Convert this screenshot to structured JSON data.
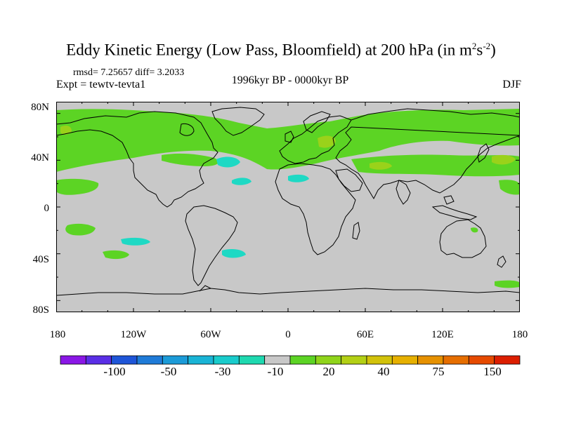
{
  "title": {
    "main": "Eddy Kinetic Energy (Low Pass, Bloomfield) at 200 hPa (in m",
    "sup1": "2",
    "mid": "s",
    "sup2": "-2",
    "end": ")"
  },
  "stats": "rmsd= 7.25657 diff= 3.2033",
  "expt": "Expt = tewtv-tevta1",
  "period": "1996kyr BP - 0000kyr BP",
  "season": "DJF",
  "y_axis_labels": [
    "80N",
    "40N",
    "0",
    "40S",
    "80S"
  ],
  "x_axis_labels": [
    "180",
    "120W",
    "60W",
    "0",
    "60E",
    "120E",
    "180"
  ],
  "colorbar": {
    "labels": [
      "-100",
      "-50",
      "-30",
      "-10",
      "20",
      "40",
      "75",
      "150"
    ],
    "colors": [
      "#8a17e6",
      "#5a2ee6",
      "#1e55d8",
      "#1f7bd8",
      "#1b9bd8",
      "#19b4d6",
      "#19cccc",
      "#1ed9b0",
      "#c8c8c8",
      "#5cd424",
      "#8fd41a",
      "#b3d015",
      "#d2c20a",
      "#e6b000",
      "#e69100",
      "#e66e00",
      "#e64a00",
      "#dc1e00"
    ]
  },
  "colors": {
    "land_background": "#c8c8c8",
    "positive_band": "#5cd424",
    "positive_high": "#9ad21a",
    "negative_band": "#1ed9c4"
  }
}
